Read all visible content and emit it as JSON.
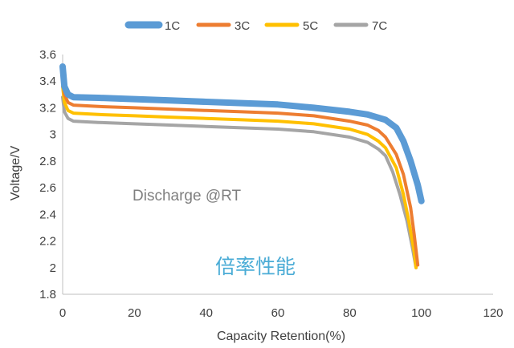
{
  "chart_data": {
    "type": "line",
    "title": "",
    "xlabel": "Capacity Retention(%)",
    "ylabel": "Voltage/V",
    "xlim": [
      0,
      120
    ],
    "ylim": [
      1.8,
      3.6
    ],
    "x_ticks": [
      "0",
      "20",
      "40",
      "60",
      "80",
      "100",
      "120"
    ],
    "y_ticks": [
      "1.8",
      "2",
      "2.2",
      "2.4",
      "2.6",
      "2.8",
      "3",
      "3.2",
      "3.4",
      "3.6"
    ],
    "grid": false,
    "legend_position": "top",
    "annotations": [
      "Discharge @RT",
      "倍率性能"
    ],
    "series": [
      {
        "name": "1C",
        "color": "#5b9bd5",
        "points": [
          [
            0,
            3.51
          ],
          [
            0.5,
            3.36
          ],
          [
            1.5,
            3.3
          ],
          [
            3,
            3.28
          ],
          [
            10,
            3.275
          ],
          [
            20,
            3.265
          ],
          [
            30,
            3.255
          ],
          [
            40,
            3.245
          ],
          [
            50,
            3.235
          ],
          [
            60,
            3.225
          ],
          [
            70,
            3.2
          ],
          [
            80,
            3.17
          ],
          [
            85,
            3.15
          ],
          [
            90,
            3.11
          ],
          [
            93,
            3.05
          ],
          [
            95,
            2.95
          ],
          [
            97,
            2.8
          ],
          [
            99,
            2.62
          ],
          [
            100,
            2.5
          ]
        ]
      },
      {
        "name": "3C",
        "color": "#ed7d31",
        "points": [
          [
            0,
            3.42
          ],
          [
            0.5,
            3.3
          ],
          [
            1.5,
            3.24
          ],
          [
            3,
            3.22
          ],
          [
            10,
            3.21
          ],
          [
            20,
            3.2
          ],
          [
            30,
            3.19
          ],
          [
            40,
            3.18
          ],
          [
            50,
            3.17
          ],
          [
            60,
            3.16
          ],
          [
            70,
            3.14
          ],
          [
            80,
            3.1
          ],
          [
            85,
            3.07
          ],
          [
            88,
            3.03
          ],
          [
            90,
            2.98
          ],
          [
            93,
            2.85
          ],
          [
            95,
            2.7
          ],
          [
            97,
            2.45
          ],
          [
            98,
            2.25
          ],
          [
            99,
            2.02
          ]
        ]
      },
      {
        "name": "5C",
        "color": "#ffc000",
        "points": [
          [
            0,
            3.36
          ],
          [
            0.5,
            3.24
          ],
          [
            1.5,
            3.18
          ],
          [
            3,
            3.16
          ],
          [
            10,
            3.15
          ],
          [
            20,
            3.14
          ],
          [
            30,
            3.13
          ],
          [
            40,
            3.12
          ],
          [
            50,
            3.11
          ],
          [
            60,
            3.1
          ],
          [
            70,
            3.08
          ],
          [
            80,
            3.04
          ],
          [
            85,
            3.0
          ],
          [
            88,
            2.95
          ],
          [
            90,
            2.9
          ],
          [
            93,
            2.75
          ],
          [
            95,
            2.55
          ],
          [
            96.5,
            2.35
          ],
          [
            98,
            2.12
          ],
          [
            98.5,
            2.0
          ]
        ]
      },
      {
        "name": "7C",
        "color": "#a5a5a5",
        "points": [
          [
            0,
            3.28
          ],
          [
            0.5,
            3.17
          ],
          [
            1.5,
            3.12
          ],
          [
            3,
            3.1
          ],
          [
            10,
            3.09
          ],
          [
            20,
            3.08
          ],
          [
            30,
            3.07
          ],
          [
            40,
            3.06
          ],
          [
            50,
            3.05
          ],
          [
            60,
            3.04
          ],
          [
            70,
            3.02
          ],
          [
            80,
            2.98
          ],
          [
            85,
            2.94
          ],
          [
            88,
            2.89
          ],
          [
            90,
            2.84
          ],
          [
            92,
            2.72
          ],
          [
            94,
            2.55
          ],
          [
            96,
            2.35
          ],
          [
            97.5,
            2.15
          ],
          [
            98.5,
            2.0
          ]
        ]
      }
    ]
  }
}
